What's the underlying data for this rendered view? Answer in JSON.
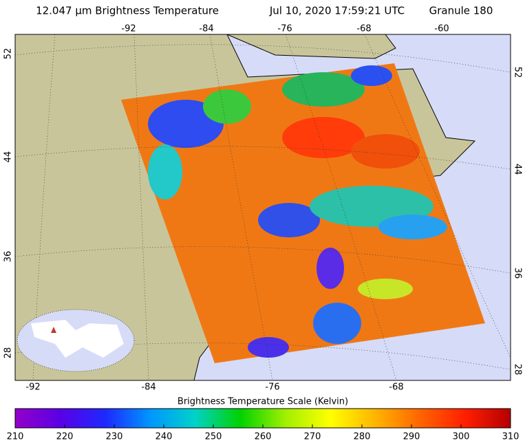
{
  "title": {
    "product": "12.047 μm Brightness Temperature",
    "time": "Jul 10, 2020 17:59:21 UTC",
    "granule": "Granule 180"
  },
  "map": {
    "top_lon_labels": [
      -92,
      -84,
      -76,
      -68,
      -60
    ],
    "bottom_lon_labels": [
      -92,
      -84,
      -76,
      -68
    ],
    "left_lat_labels": [
      52,
      44,
      36,
      28
    ],
    "right_lat_labels": [
      52,
      44,
      36,
      28
    ]
  },
  "colorbar": {
    "title": "Brightness Temperature Scale (Kelvin)",
    "lim": [
      210,
      310
    ],
    "ticks": [
      210,
      220,
      230,
      240,
      250,
      260,
      270,
      280,
      290,
      300,
      310
    ],
    "colors": [
      "#9400c8",
      "#5a00e6",
      "#1e28ff",
      "#0096ff",
      "#00d2c8",
      "#00d200",
      "#a0f000",
      "#ffff00",
      "#ffb400",
      "#ff6400",
      "#ff1e00",
      "#b40000"
    ]
  }
}
